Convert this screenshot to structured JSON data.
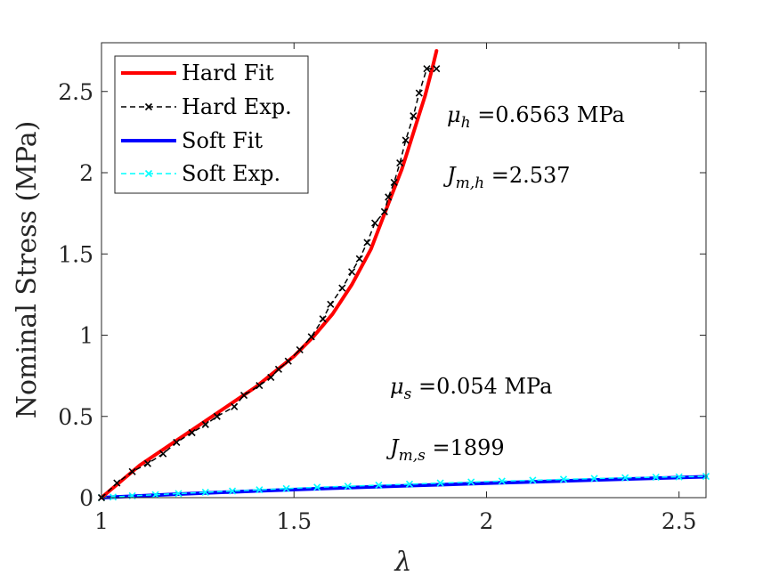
{
  "chart_data": {
    "type": "line",
    "xlabel": "λ",
    "ylabel": "Nominal Stress (MPa)",
    "xlim": [
      1,
      2.57
    ],
    "ylim": [
      0,
      2.8
    ],
    "xticks": [
      1,
      1.5,
      2,
      2.5
    ],
    "yticks": [
      0,
      0.5,
      1,
      1.5,
      2,
      2.5
    ],
    "xtick_labels": [
      "1",
      "1.5",
      "2",
      "2.5"
    ],
    "ytick_labels": [
      "0",
      "0.5",
      "1",
      "1.5",
      "2",
      "2.5"
    ],
    "grid": false,
    "legend_position": "top-left",
    "series": [
      {
        "name": "Hard Fit",
        "style": "solid",
        "color": "#ff0000",
        "x": [
          1.0,
          1.1,
          1.2,
          1.3,
          1.4,
          1.5,
          1.55,
          1.6,
          1.65,
          1.7,
          1.75,
          1.78,
          1.8,
          1.82,
          1.84,
          1.86,
          1.87
        ],
        "y": [
          0.0,
          0.2,
          0.36,
          0.52,
          0.68,
          0.87,
          0.99,
          1.13,
          1.31,
          1.53,
          1.84,
          2.02,
          2.17,
          2.32,
          2.47,
          2.65,
          2.75
        ]
      },
      {
        "name": "Hard Exp.",
        "style": "dashed-x",
        "color": "#000000",
        "x": [
          1.0,
          1.04,
          1.08,
          1.12,
          1.16,
          1.195,
          1.235,
          1.27,
          1.3,
          1.345,
          1.37,
          1.41,
          1.44,
          1.46,
          1.485,
          1.515,
          1.545,
          1.575,
          1.595,
          1.625,
          1.65,
          1.67,
          1.69,
          1.71,
          1.735,
          1.745,
          1.76,
          1.775,
          1.79,
          1.81,
          1.825,
          1.845,
          1.87
        ],
        "y": [
          0.0,
          0.09,
          0.16,
          0.21,
          0.27,
          0.34,
          0.4,
          0.45,
          0.5,
          0.56,
          0.63,
          0.69,
          0.74,
          0.79,
          0.84,
          0.91,
          0.99,
          1.1,
          1.19,
          1.29,
          1.39,
          1.47,
          1.57,
          1.69,
          1.76,
          1.85,
          1.94,
          2.06,
          2.2,
          2.35,
          2.49,
          2.64,
          2.64
        ]
      },
      {
        "name": "Soft Fit",
        "style": "solid",
        "color": "#0000ff",
        "x": [
          1.0,
          1.2,
          1.4,
          1.6,
          1.8,
          2.0,
          2.2,
          2.4,
          2.57
        ],
        "y": [
          0.0,
          0.022,
          0.041,
          0.058,
          0.074,
          0.089,
          0.103,
          0.117,
          0.129
        ]
      },
      {
        "name": "Soft Exp.",
        "style": "dashed-x",
        "color": "#00ffff",
        "x": [
          1.0,
          1.03,
          1.08,
          1.14,
          1.2,
          1.27,
          1.34,
          1.41,
          1.48,
          1.56,
          1.64,
          1.72,
          1.8,
          1.88,
          1.96,
          2.04,
          2.12,
          2.2,
          2.28,
          2.36,
          2.44,
          2.5,
          2.57
        ],
        "y": [
          0.0,
          0.004,
          0.011,
          0.018,
          0.025,
          0.033,
          0.041,
          0.048,
          0.056,
          0.064,
          0.07,
          0.077,
          0.083,
          0.09,
          0.096,
          0.102,
          0.107,
          0.113,
          0.118,
          0.122,
          0.126,
          0.128,
          0.131
        ]
      }
    ],
    "annotations": [
      {
        "sym": "μ",
        "sub": "h",
        "value": " =0.6563 MPa"
      },
      {
        "sym": "J",
        "sub": "m,h",
        "value": " =2.537"
      },
      {
        "sym": "μ",
        "sub": "s",
        "value": " =0.054 MPa"
      },
      {
        "sym": "J",
        "sub": "m,s",
        "value": " =1899"
      }
    ]
  }
}
